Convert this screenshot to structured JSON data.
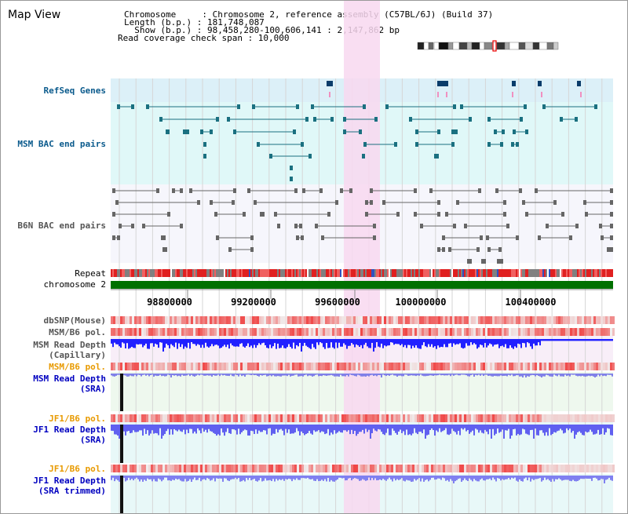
{
  "page_title": "Map View",
  "info": {
    "line1": "Chromosome     : Chromosome 2, reference assembly (C57BL/6J) (Build 37)",
    "line2": "Length (b.p.) : 181,748,087",
    "line3": "  Show (b.p.) : 98,458,280-100,606,141 : 2,147,862 bp",
    "line4": "Read coverage check span : 10,000"
  },
  "tracks": {
    "refseq": "RefSeq Genes",
    "msm_bac": "MSM BAC end pairs",
    "b6n_bac": "B6N BAC end pairs",
    "repeat": "Repeat",
    "chromosome": "chromosome 2",
    "dbsnp": "dbSNP(Mouse)",
    "msm_b6_pol_1": "MSM/B6 pol.",
    "msm_read_depth_cap_1": "MSM Read Depth",
    "msm_read_depth_cap_2": "(Capillary)",
    "msm_b6_pol_2": "MSM/B6 pol.",
    "msm_read_depth_sra_1": "MSM Read Depth",
    "msm_read_depth_sra_2": "(SRA)",
    "jf1_b6_pol_1": "JF1/B6 pol.",
    "jf1_read_depth_sra_1": "JF1 Read Depth",
    "jf1_read_depth_sra_2": "(SRA)",
    "jf1_b6_pol_2": "JF1/B6 pol.",
    "jf1_read_depth_trim_1": "JF1 Read Depth",
    "jf1_read_depth_trim_2": "(SRA trimmed)"
  },
  "axis_ticks": [
    "98800000",
    "99200000",
    "99600000",
    "100000000",
    "100400000"
  ],
  "colors": {
    "refseq_bg": "#dcf0f8",
    "msm_bac_bg": "#e0f8f8",
    "highlight": "#f8d8f0",
    "chromosome": "#007000",
    "msm_label": "#0a5a8c",
    "b6n_label": "#555555",
    "orange_label": "#e89a00",
    "blue_label": "#0000c0"
  }
}
